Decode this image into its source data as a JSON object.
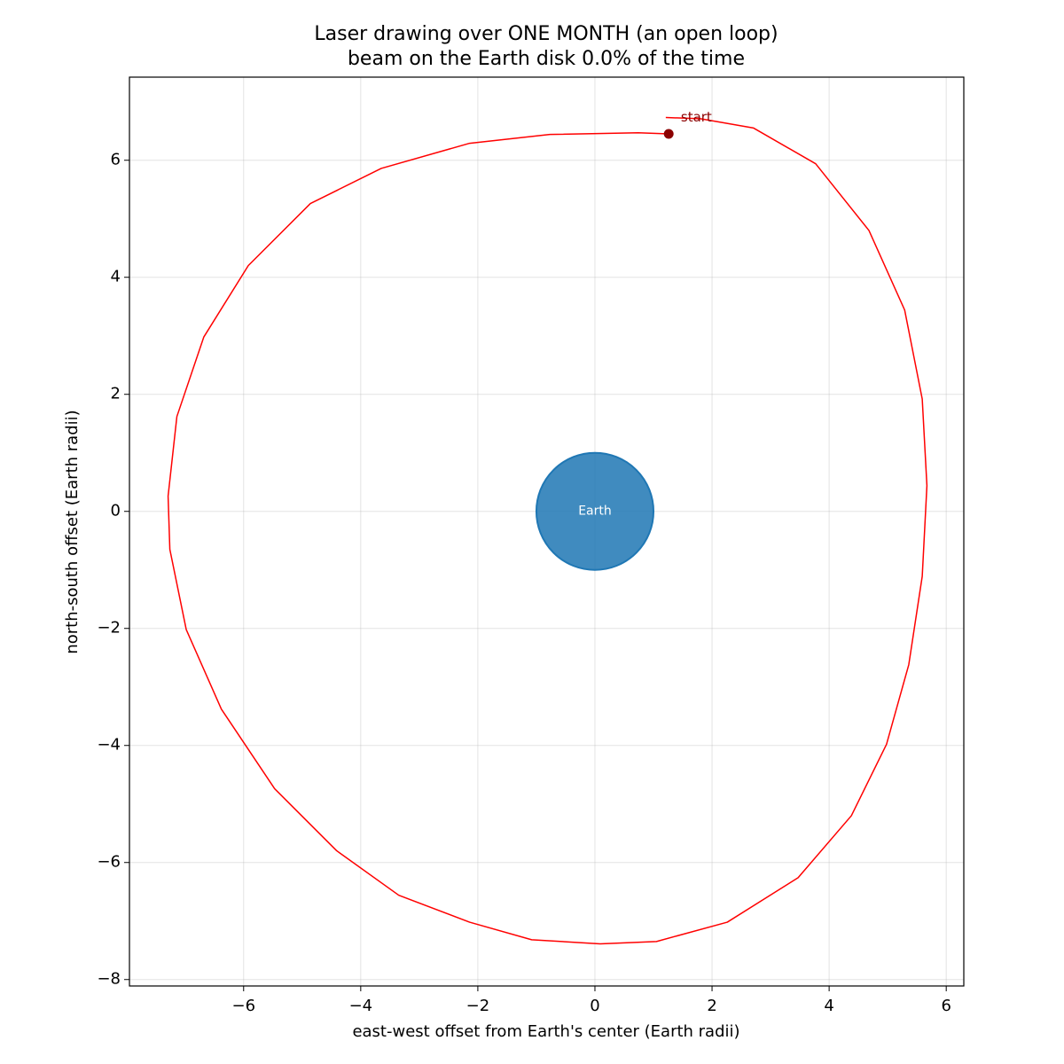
{
  "chart_data": {
    "type": "line",
    "title": "Laser drawing over ONE MONTH (an open loop)",
    "subtitle": "beam on the Earth disk 0.0% of the time",
    "xlabel": "east-west offset from Earth's center  (Earth radii)",
    "ylabel": "north-south offset  (Earth radii)",
    "xlim": [
      -7.95,
      6.3
    ],
    "ylim": [
      -8.11,
      7.42
    ],
    "xticks": [
      {
        "value": -6,
        "label": "−6"
      },
      {
        "value": -4,
        "label": "−4"
      },
      {
        "value": -2,
        "label": "−2"
      },
      0,
      2,
      4,
      6
    ],
    "yticks": [
      {
        "value": -8,
        "label": "−8"
      },
      {
        "value": -6,
        "label": "−6"
      },
      {
        "value": -4,
        "label": "−4"
      },
      {
        "value": -2,
        "label": "−2"
      },
      0,
      2,
      4,
      6
    ],
    "grid": true,
    "color": "#ff0000",
    "x": [
      1.21,
      1.8,
      2.71,
      3.77,
      4.68,
      5.29,
      5.59,
      5.67,
      5.59,
      5.36,
      4.98,
      4.38,
      3.47,
      2.26,
      1.05,
      0.09,
      -1.08,
      -2.14,
      -3.35,
      -4.41,
      -5.47,
      -6.38,
      -6.98,
      -7.26,
      -7.29,
      -7.14,
      -6.68,
      -5.92,
      -4.86,
      -3.65,
      -2.14,
      -0.77,
      0.74,
      1.26
    ],
    "y": [
      6.73,
      6.71,
      6.55,
      5.94,
      4.8,
      3.44,
      1.92,
      0.44,
      -1.11,
      -2.62,
      -3.98,
      -5.2,
      -6.26,
      -7.02,
      -7.35,
      -7.39,
      -7.32,
      -7.02,
      -6.56,
      -5.8,
      -4.74,
      -3.38,
      -2.02,
      -0.65,
      0.26,
      1.62,
      2.98,
      4.2,
      5.26,
      5.86,
      6.29,
      6.44,
      6.47,
      6.45
    ],
    "marker_color": "#8b0000",
    "annotation": "start",
    "earth": {
      "label": "Earth",
      "x": 0,
      "y": 0,
      "radius": 1,
      "color": "#1f77b4"
    }
  }
}
